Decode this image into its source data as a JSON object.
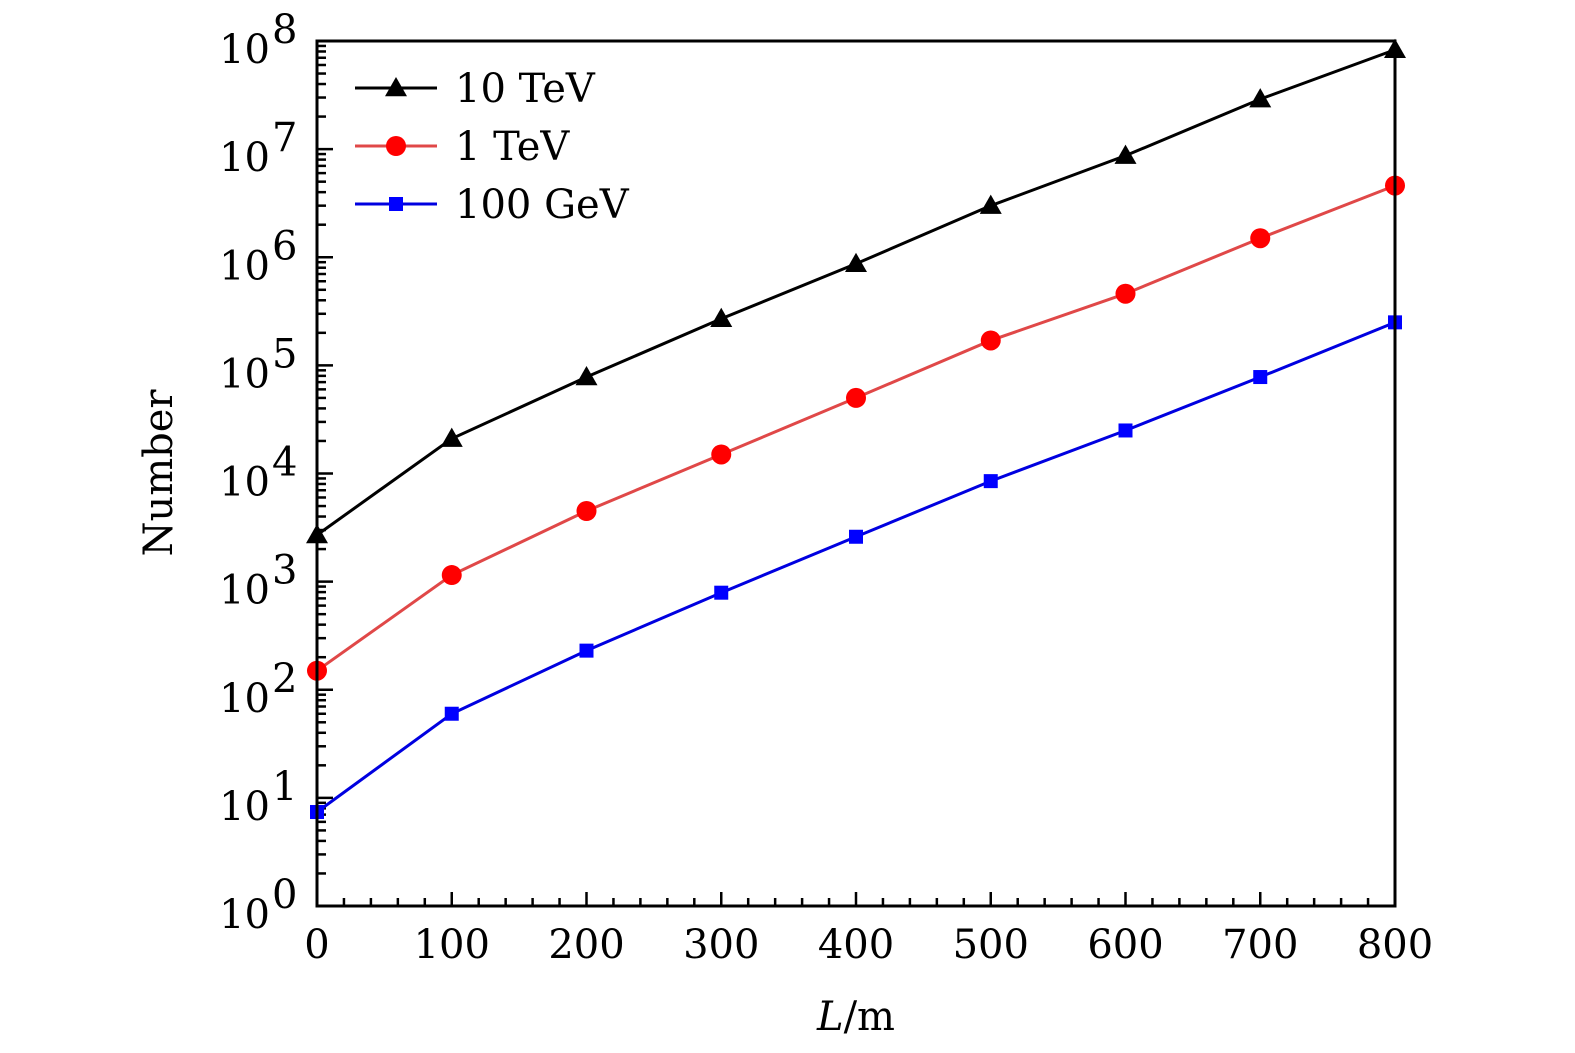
{
  "chart_data": {
    "type": "line",
    "title": "",
    "xlabel_italic": "L",
    "xlabel_unit": "/m",
    "ylabel": "Number",
    "xscale": "linear",
    "yscale": "log",
    "xlim": [
      0,
      800
    ],
    "ylim": [
      1,
      100000000
    ],
    "x_ticks": [
      0,
      100,
      200,
      300,
      400,
      500,
      600,
      700,
      800
    ],
    "x_tick_labels": [
      "0",
      "100",
      "200",
      "300",
      "400",
      "500",
      "600",
      "700",
      "800"
    ],
    "x_minor_step": 20,
    "y_ticks_exponents": [
      0,
      1,
      2,
      3,
      4,
      5,
      6,
      7,
      8
    ],
    "y_tick_base": "10",
    "grid": false,
    "legend_position": "top-left",
    "x": [
      0,
      100,
      200,
      300,
      400,
      500,
      600,
      700,
      800
    ],
    "series": [
      {
        "name": "10 TeV",
        "color": "#000000",
        "marker": "triangle",
        "values": [
          2700,
          21000,
          78000,
          270000,
          870000,
          3000000,
          8700000,
          29000000,
          83000000
        ]
      },
      {
        "name": "1 TeV",
        "color": "#e04848",
        "marker_color": "#ff0000",
        "marker": "circle",
        "values": [
          150,
          1150,
          4500,
          15000,
          50000,
          170000,
          460000,
          1500000,
          4600000
        ]
      },
      {
        "name": "100 GeV",
        "color": "#0000e0",
        "marker_color": "#0000ff",
        "marker": "square",
        "values": [
          7.4,
          60,
          230,
          790,
          2600,
          8500,
          25000,
          78000,
          250000
        ]
      }
    ]
  }
}
